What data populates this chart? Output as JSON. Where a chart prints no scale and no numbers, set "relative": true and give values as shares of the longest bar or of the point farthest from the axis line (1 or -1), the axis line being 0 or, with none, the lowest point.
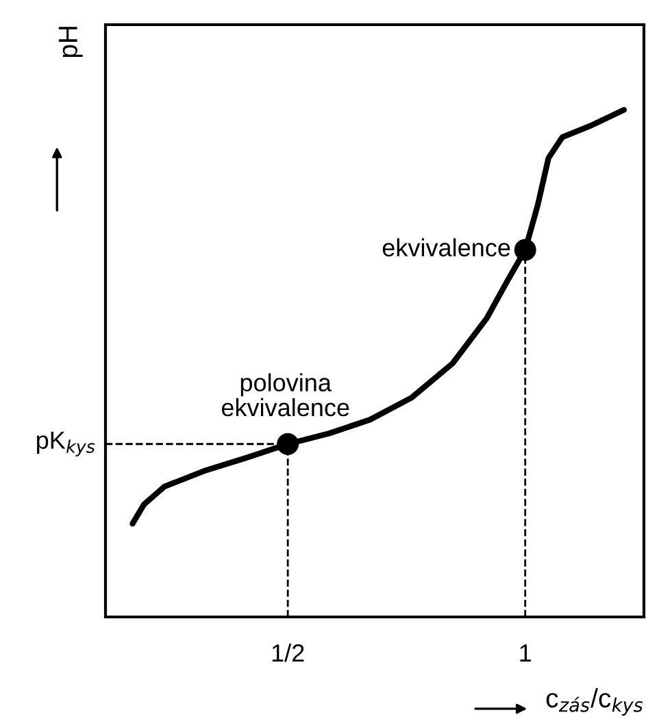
{
  "chart_data": {
    "type": "line",
    "relative": true,
    "xlabel": "c$_{zás}$/c$_{kys}$",
    "ylabel": "pH",
    "xlim": [
      0.116,
      1.25
    ],
    "xticks": [
      {
        "value": 0.5,
        "label": "1/2"
      },
      1
    ],
    "series": [
      {
        "color": "#000000",
        "marker": "none",
        "x": [
          0.173,
          0.197,
          0.24,
          0.327,
          0.413,
          0.5,
          0.587,
          0.673,
          0.76,
          0.847,
          0.919,
          0.962,
          1.0,
          1.026,
          1.049,
          1.078,
          1.136,
          1.208
        ],
        "values": [
          0.184,
          0.222,
          0.257,
          0.289,
          0.314,
          0.341,
          0.362,
          0.389,
          0.432,
          0.5,
          0.589,
          0.662,
          0.724,
          0.811,
          0.905,
          0.946,
          0.968,
          1.0
        ]
      },
      {
        "type": "scatter",
        "color": "#000000",
        "marker": "circle",
        "x": [
          0.5,
          1.0
        ],
        "values": [
          0.341,
          0.724
        ]
      }
    ],
    "ref_lines": [
      {
        "axis": "y",
        "value": 0.341,
        "label": "pK$_{kys}$",
        "line_style": "dashed"
      },
      {
        "axis": "x",
        "value": 0.5,
        "line_style": "dashed"
      },
      {
        "axis": "x",
        "value": 1.0,
        "line_style": "dashed"
      }
    ],
    "annotations": [
      {
        "text": "polovina\nekvivalence",
        "x": 0.5,
        "y": 0.341
      },
      {
        "text": "ekvivalence",
        "x": 1.0,
        "y": 0.724
      }
    ],
    "grid": false
  }
}
